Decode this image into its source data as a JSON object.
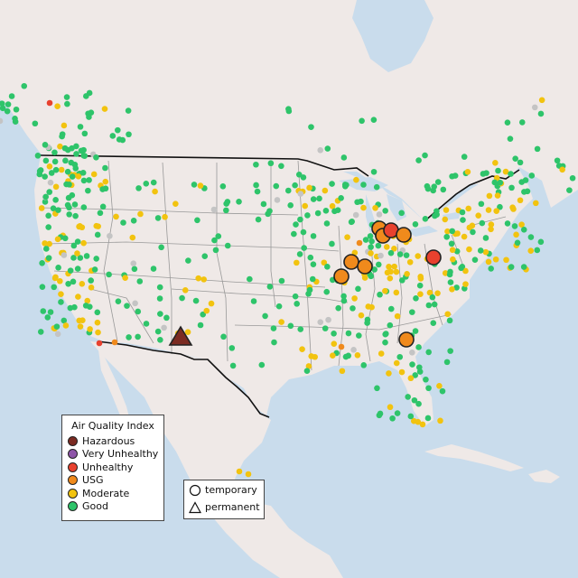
{
  "legend": {
    "title": "Air Quality Index",
    "items": [
      {
        "label": "Hazardous",
        "color": "#7b2b22"
      },
      {
        "label": "Very Unhealthy",
        "color": "#8e55a8"
      },
      {
        "label": "Unhealthy",
        "color": "#e8412e"
      },
      {
        "label": "USG",
        "color": "#f08a1c"
      },
      {
        "label": "Moderate",
        "color": "#f2c30f"
      },
      {
        "label": "Good",
        "color": "#2ec46a"
      }
    ]
  },
  "shape_legend": {
    "items": [
      {
        "label": "temporary",
        "icon": "circle-icon"
      },
      {
        "label": "permanent",
        "icon": "triangle-icon"
      }
    ]
  },
  "colors": {
    "ocean": "#c9dcec",
    "land": "#efe9e7",
    "state_border": "#999999",
    "country_border": "#111111",
    "no_data_station": "#c4c4c4"
  }
}
